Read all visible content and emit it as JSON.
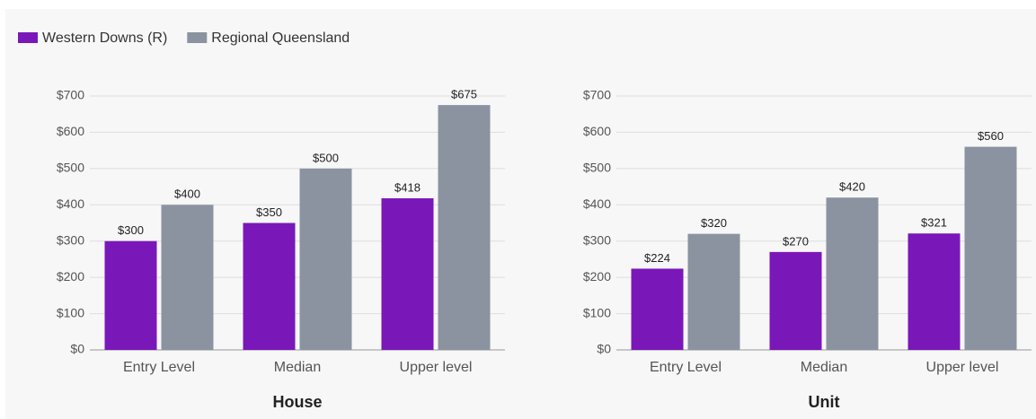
{
  "chart_data": [
    {
      "type": "bar",
      "xlabel": "House",
      "categories": [
        "Entry Level",
        "Median",
        "Upper level"
      ],
      "series": [
        {
          "name": "Western Downs (R)",
          "color": "#7a17b9",
          "values": [
            300,
            350,
            418
          ],
          "value_labels": [
            "$300",
            "$350",
            "$418"
          ]
        },
        {
          "name": "Regional Queensland",
          "color": "#8b93a1",
          "values": [
            400,
            500,
            675
          ],
          "value_labels": [
            "$400",
            "$500",
            "$675"
          ]
        }
      ],
      "ylim": [
        0,
        700
      ],
      "yticks": [
        {
          "value": 0,
          "label": "$0"
        },
        {
          "value": 100,
          "label": "$100"
        },
        {
          "value": 200,
          "label": "$200"
        },
        {
          "value": 300,
          "label": "$300"
        },
        {
          "value": 400,
          "label": "$400"
        },
        {
          "value": 500,
          "label": "$500"
        },
        {
          "value": 600,
          "label": "$600"
        },
        {
          "value": 700,
          "label": "$700"
        }
      ],
      "grid": true,
      "legend": "top-left"
    },
    {
      "type": "bar",
      "xlabel": "Unit",
      "categories": [
        "Entry Level",
        "Median",
        "Upper level"
      ],
      "series": [
        {
          "name": "Western Downs (R)",
          "color": "#7a17b9",
          "values": [
            224,
            270,
            321
          ],
          "value_labels": [
            "$224",
            "$270",
            "$321"
          ]
        },
        {
          "name": "Regional Queensland",
          "color": "#8b93a1",
          "values": [
            320,
            420,
            560
          ],
          "value_labels": [
            "$320",
            "$420",
            "$560"
          ]
        }
      ],
      "ylim": [
        0,
        700
      ],
      "yticks": [
        {
          "value": 0,
          "label": "$0"
        },
        {
          "value": 100,
          "label": "$100"
        },
        {
          "value": 200,
          "label": "$200"
        },
        {
          "value": 300,
          "label": "$300"
        },
        {
          "value": 400,
          "label": "$400"
        },
        {
          "value": 500,
          "label": "$500"
        },
        {
          "value": 600,
          "label": "$600"
        },
        {
          "value": 700,
          "label": "$700"
        }
      ],
      "grid": true
    }
  ]
}
